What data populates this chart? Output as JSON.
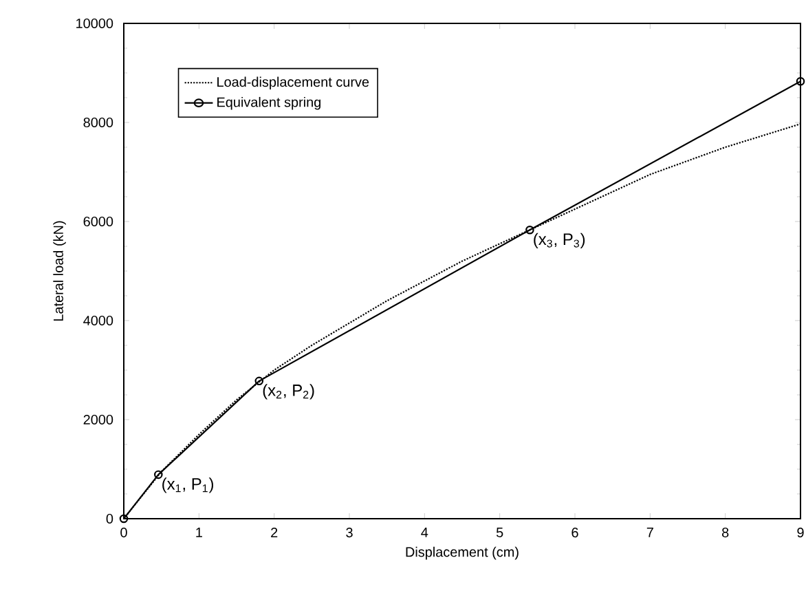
{
  "chart_data": {
    "type": "line",
    "xlabel": "Displacement (cm)",
    "ylabel": "Lateral load (kN)",
    "xlim": [
      0,
      9
    ],
    "ylim": [
      0,
      10000
    ],
    "xticks": [
      0,
      1,
      2,
      3,
      4,
      5,
      6,
      7,
      8,
      9
    ],
    "yticks": [
      0,
      2000,
      4000,
      6000,
      8000,
      10000
    ],
    "grid": false,
    "legend": "top left",
    "series": [
      {
        "name": "Load-displacement curve",
        "color": "#000000",
        "line_style": "dotted",
        "marker": "none",
        "x": [
          0,
          0.5,
          1,
          1.5,
          2,
          2.5,
          3,
          3.5,
          4,
          4.5,
          5,
          5.5,
          6,
          7,
          8,
          9
        ],
        "values": [
          0,
          950,
          1700,
          2400,
          3000,
          3500,
          3950,
          4400,
          4800,
          5200,
          5550,
          5900,
          6250,
          6950,
          7500,
          7970
        ]
      },
      {
        "name": "Equivalent spring",
        "color": "#000000",
        "line_style": "solid",
        "marker": "circle",
        "x": [
          0,
          0.46,
          1.8,
          5.4,
          9
        ],
        "values": [
          0,
          890,
          2780,
          5830,
          8830
        ]
      }
    ],
    "annotations": [
      {
        "text": "(x$_{1}$, P$_{1}$)",
        "x": 0.46,
        "y": 890
      },
      {
        "text": "(x$_{2}$, P$_{2}$)",
        "x": 1.8,
        "y": 2780
      },
      {
        "text": "(x$_{3}$, P$_{3}$)",
        "x": 5.4,
        "y": 5830
      }
    ]
  }
}
